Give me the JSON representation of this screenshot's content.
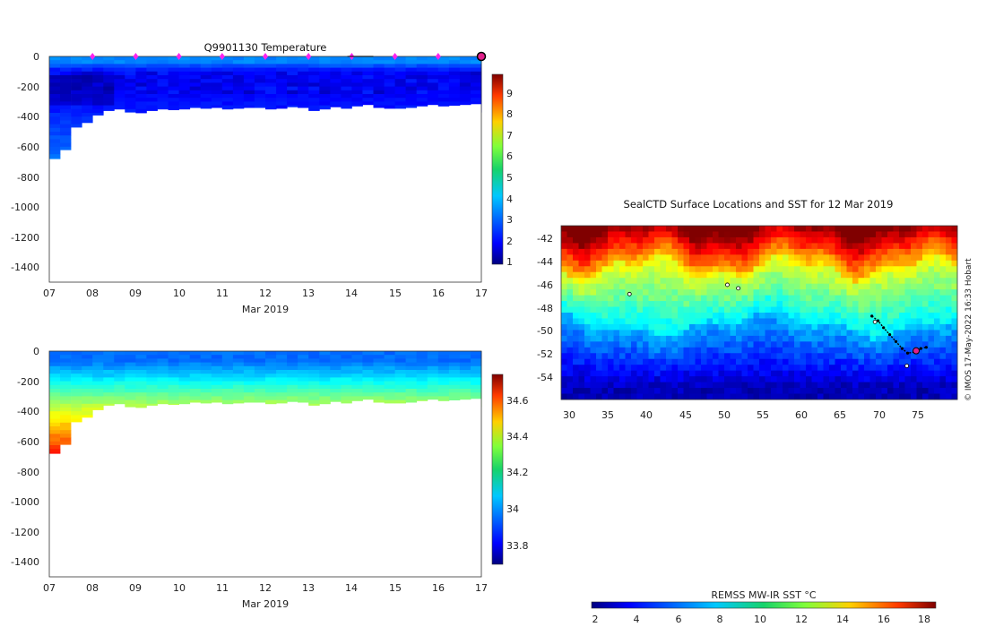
{
  "chart_data": [
    {
      "type": "heatmap",
      "title": "Q9901130  Temperature",
      "xlabel": "Mar 2019",
      "x_ticks": [
        "07",
        "08",
        "09",
        "10",
        "11",
        "12",
        "13",
        "14",
        "15",
        "16",
        "17"
      ],
      "xlim": [
        7,
        17
      ],
      "y_ticks": [
        "0",
        "-200",
        "-400",
        "-600",
        "-800",
        "-1000",
        "-1200",
        "-1400"
      ],
      "ylim": [
        -1500,
        0
      ],
      "colorbar": {
        "ticks": [
          "1",
          "2",
          "3",
          "4",
          "5",
          "6",
          "7",
          "8",
          "9"
        ],
        "range": [
          0.8,
          9.8
        ]
      },
      "profile_markers_days": [
        8,
        9,
        10,
        11,
        12,
        13,
        14,
        15,
        16
      ],
      "current_marker_day": 17,
      "profile_max_depth": [
        {
          "day": 7.0,
          "depth": 680
        },
        {
          "day": 7.25,
          "depth": 620
        },
        {
          "day": 7.5,
          "depth": 470
        },
        {
          "day": 7.75,
          "depth": 440
        },
        {
          "day": 8.0,
          "depth": 390
        },
        {
          "day": 8.25,
          "depth": 360
        },
        {
          "day": 8.5,
          "depth": 350
        },
        {
          "day": 8.75,
          "depth": 370
        },
        {
          "day": 9.0,
          "depth": 375
        },
        {
          "day": 9.25,
          "depth": 360
        },
        {
          "day": 9.5,
          "depth": 350
        },
        {
          "day": 9.75,
          "depth": 355
        },
        {
          "day": 10.0,
          "depth": 350
        },
        {
          "day": 10.25,
          "depth": 340
        },
        {
          "day": 10.5,
          "depth": 345
        },
        {
          "day": 10.75,
          "depth": 340
        },
        {
          "day": 11.0,
          "depth": 350
        },
        {
          "day": 11.25,
          "depth": 345
        },
        {
          "day": 11.5,
          "depth": 340
        },
        {
          "day": 11.75,
          "depth": 340
        },
        {
          "day": 12.0,
          "depth": 350
        },
        {
          "day": 12.25,
          "depth": 345
        },
        {
          "day": 12.5,
          "depth": 335
        },
        {
          "day": 12.75,
          "depth": 340
        },
        {
          "day": 13.0,
          "depth": 360
        },
        {
          "day": 13.25,
          "depth": 350
        },
        {
          "day": 13.5,
          "depth": 335
        },
        {
          "day": 13.75,
          "depth": 345
        },
        {
          "day": 14.0,
          "depth": 330
        },
        {
          "day": 14.25,
          "depth": 320
        },
        {
          "day": 14.5,
          "depth": 340
        },
        {
          "day": 14.75,
          "depth": 345
        },
        {
          "day": 15.0,
          "depth": 345
        },
        {
          "day": 15.25,
          "depth": 340
        },
        {
          "day": 15.5,
          "depth": 330
        },
        {
          "day": 15.75,
          "depth": 320
        },
        {
          "day": 16.0,
          "depth": 330
        },
        {
          "day": 16.25,
          "depth": 325
        },
        {
          "day": 16.5,
          "depth": 320
        },
        {
          "day": 16.75,
          "depth": 315
        },
        {
          "day": 17.0,
          "depth": 370
        }
      ]
    },
    {
      "type": "heatmap",
      "title": "",
      "xlabel": "Mar 2019",
      "x_ticks": [
        "07",
        "08",
        "09",
        "10",
        "11",
        "12",
        "13",
        "14",
        "15",
        "16",
        "17"
      ],
      "xlim": [
        7,
        17
      ],
      "y_ticks": [
        "0",
        "-200",
        "-400",
        "-600",
        "-800",
        "-1000",
        "-1200",
        "-1400"
      ],
      "ylim": [
        -1500,
        0
      ],
      "colorbar": {
        "ticks": [
          "33.8",
          "34",
          "34.2",
          "34.4",
          "34.6"
        ],
        "range": [
          33.68,
          34.72
        ]
      }
    },
    {
      "type": "heatmap",
      "title": "SealCTD Surface Locations and SST for 12 Mar 2019",
      "x_ticks": [
        "30",
        "35",
        "40",
        "45",
        "50",
        "55",
        "60",
        "65",
        "70",
        "75"
      ],
      "xlim": [
        29,
        80
      ],
      "y_ticks": [
        "-42",
        "-44",
        "-46",
        "-48",
        "-50",
        "-52",
        "-54"
      ],
      "ylim": [
        -56,
        -41
      ],
      "colorbar": {
        "label": "REMSS MW-IR SST °C",
        "ticks": [
          "2",
          "4",
          "6",
          "8",
          "10",
          "12",
          "14",
          "16",
          "18"
        ],
        "range": [
          1,
          19
        ]
      },
      "track": [
        {
          "lon": 69.0,
          "lat": -48.8
        },
        {
          "lon": 69.8,
          "lat": -49.2
        },
        {
          "lon": 70.5,
          "lat": -49.8
        },
        {
          "lon": 71.3,
          "lat": -50.4
        },
        {
          "lon": 72.1,
          "lat": -51.0
        },
        {
          "lon": 72.9,
          "lat": -51.6
        },
        {
          "lon": 73.6,
          "lat": -52.0
        },
        {
          "lon": 74.5,
          "lat": -51.9
        },
        {
          "lon": 75.3,
          "lat": -51.6
        },
        {
          "lon": 76.0,
          "lat": -51.5
        }
      ],
      "current_position": {
        "lon": 74.7,
        "lat": -51.8
      },
      "islands": [
        {
          "lon": 37.8,
          "lat": -46.9
        },
        {
          "lon": 50.4,
          "lat": -46.1
        },
        {
          "lon": 51.8,
          "lat": -46.4
        },
        {
          "lon": 69.4,
          "lat": -49.3
        },
        {
          "lon": 73.5,
          "lat": -53.1
        }
      ],
      "credit": "© IMOS 17-May-2022 16:33 Hobart"
    }
  ],
  "colors": {
    "marker": "#ff22ee",
    "current": "#e0208a",
    "track": "#000000"
  }
}
